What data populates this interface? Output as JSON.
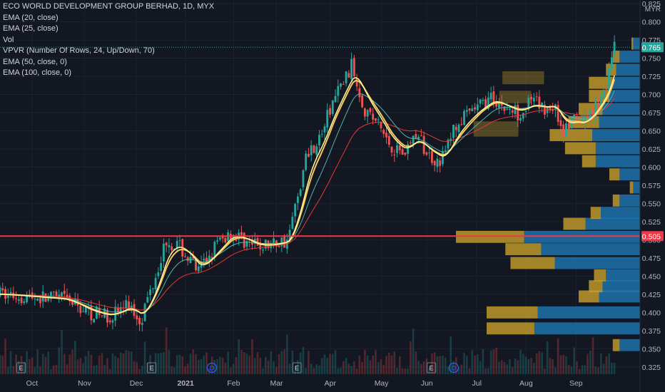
{
  "header": {
    "title": "ECO WORLD DEVELOPMENT GROUP BERHAD, 1D, MYX",
    "indicators": [
      "EMA (20, close)",
      "EMA (25, close)",
      "Vol",
      "VPVR (Number Of Rows, 24, Up/Down, 70)",
      "EMA (50, close, 0)",
      "EMA (100, close, 0)"
    ]
  },
  "colors": {
    "background": "#131722",
    "up": "#26a69a",
    "down": "#ef5350",
    "ema20": "#fff59d",
    "ema25": "#f6c85f",
    "ema50": "#4db6ac",
    "ema100": "#e53935",
    "vp_up": "#1f77b4",
    "vp_down": "#c8a02a",
    "hline": "#f23645",
    "price_badge": "#26a69a"
  },
  "chart_data": {
    "type": "candlestick",
    "currency": "MYR",
    "x_labels": [
      "Oct",
      "Nov",
      "Dec",
      "2021",
      "Feb",
      "Mar",
      "Apr",
      "May",
      "Jun",
      "Jul",
      "Aug",
      "Sep"
    ],
    "y_ticks": [
      "0.825",
      "0.800",
      "0.775",
      "0.750",
      "0.725",
      "0.700",
      "0.675",
      "0.650",
      "0.625",
      "0.600",
      "0.575",
      "0.550",
      "0.525",
      "0.500",
      "0.475",
      "0.450",
      "0.425",
      "0.400",
      "0.375",
      "0.350",
      "0.325"
    ],
    "ylim": [
      0.315,
      0.83
    ],
    "last_price": "0.765",
    "horizontal_line": "0.505",
    "price_path": [
      [
        0.0,
        0.425
      ],
      [
        0.1,
        0.418
      ],
      [
        0.14,
        0.4
      ],
      [
        0.17,
        0.395
      ],
      [
        0.2,
        0.41
      ],
      [
        0.22,
        0.39
      ],
      [
        0.24,
        0.445
      ],
      [
        0.26,
        0.5
      ],
      [
        0.28,
        0.49
      ],
      [
        0.31,
        0.455
      ],
      [
        0.335,
        0.49
      ],
      [
        0.36,
        0.51
      ],
      [
        0.38,
        0.5
      ],
      [
        0.4,
        0.49
      ],
      [
        0.43,
        0.495
      ],
      [
        0.45,
        0.5
      ],
      [
        0.465,
        0.56
      ],
      [
        0.48,
        0.62
      ],
      [
        0.5,
        0.64
      ],
      [
        0.52,
        0.69
      ],
      [
        0.55,
        0.74
      ],
      [
        0.57,
        0.68
      ],
      [
        0.59,
        0.66
      ],
      [
        0.61,
        0.63
      ],
      [
        0.63,
        0.62
      ],
      [
        0.65,
        0.645
      ],
      [
        0.67,
        0.615
      ],
      [
        0.69,
        0.61
      ],
      [
        0.71,
        0.655
      ],
      [
        0.73,
        0.67
      ],
      [
        0.75,
        0.685
      ],
      [
        0.77,
        0.695
      ],
      [
        0.79,
        0.68
      ],
      [
        0.81,
        0.675
      ],
      [
        0.83,
        0.69
      ],
      [
        0.85,
        0.68
      ],
      [
        0.865,
        0.685
      ],
      [
        0.88,
        0.65
      ],
      [
        0.9,
        0.665
      ],
      [
        0.91,
        0.66
      ],
      [
        0.93,
        0.685
      ],
      [
        0.95,
        0.72
      ],
      [
        0.96,
        0.765
      ]
    ],
    "candle_count": 230,
    "ema_lag": {
      "ema20": 0.045,
      "ema25": 0.055,
      "ema50": 0.1,
      "ema100": 0.2
    },
    "volume_profile": [
      {
        "price": 0.355,
        "up": 0.012,
        "down": 0.004
      },
      {
        "price": 0.378,
        "up": 0.062,
        "down": 0.028
      },
      {
        "price": 0.4,
        "up": 0.06,
        "down": 0.03
      },
      {
        "price": 0.422,
        "up": 0.024,
        "down": 0.012
      },
      {
        "price": 0.436,
        "up": 0.022,
        "down": 0.008
      },
      {
        "price": 0.451,
        "up": 0.02,
        "down": 0.007
      },
      {
        "price": 0.468,
        "up": 0.05,
        "down": 0.026
      },
      {
        "price": 0.487,
        "up": 0.058,
        "down": 0.021
      },
      {
        "price": 0.504,
        "up": 0.068,
        "down": 0.04
      },
      {
        "price": 0.522,
        "up": 0.032,
        "down": 0.013
      },
      {
        "price": 0.537,
        "up": 0.023,
        "down": 0.006
      },
      {
        "price": 0.554,
        "up": 0.012,
        "down": 0.004
      },
      {
        "price": 0.572,
        "up": 0.004,
        "down": 0.002
      },
      {
        "price": 0.59,
        "up": 0.012,
        "down": 0.006
      },
      {
        "price": 0.608,
        "up": 0.026,
        "down": 0.008
      },
      {
        "price": 0.626,
        "up": 0.026,
        "down": 0.018
      },
      {
        "price": 0.644,
        "up": 0.028,
        "down": 0.025
      },
      {
        "price": 0.662,
        "up": 0.024,
        "down": 0.018
      },
      {
        "price": 0.68,
        "up": 0.022,
        "down": 0.014
      },
      {
        "price": 0.698,
        "up": 0.018,
        "down": 0.012
      },
      {
        "price": 0.716,
        "up": 0.016,
        "down": 0.014
      },
      {
        "price": 0.734,
        "up": 0.014,
        "down": 0.006
      },
      {
        "price": 0.752,
        "up": 0.012,
        "down": 0.004
      },
      {
        "price": 0.77,
        "up": 0.004,
        "down": 0.001
      }
    ],
    "vp_scale_max": 0.108,
    "highlight_boxes": [
      {
        "x0": 0.74,
        "x1": 0.81,
        "y0": 0.642,
        "y1": 0.663
      },
      {
        "x0": 0.78,
        "x1": 0.83,
        "y0": 0.688,
        "y1": 0.705
      },
      {
        "x0": 0.785,
        "x1": 0.85,
        "y0": 0.714,
        "y1": 0.732
      }
    ],
    "event_markers": [
      {
        "x": 0.033,
        "label": "E"
      },
      {
        "x": 0.237,
        "label": "E"
      },
      {
        "x": 0.331,
        "label": "D"
      },
      {
        "x": 0.464,
        "label": "E"
      },
      {
        "x": 0.674,
        "label": "E"
      },
      {
        "x": 0.709,
        "label": "D"
      }
    ]
  }
}
